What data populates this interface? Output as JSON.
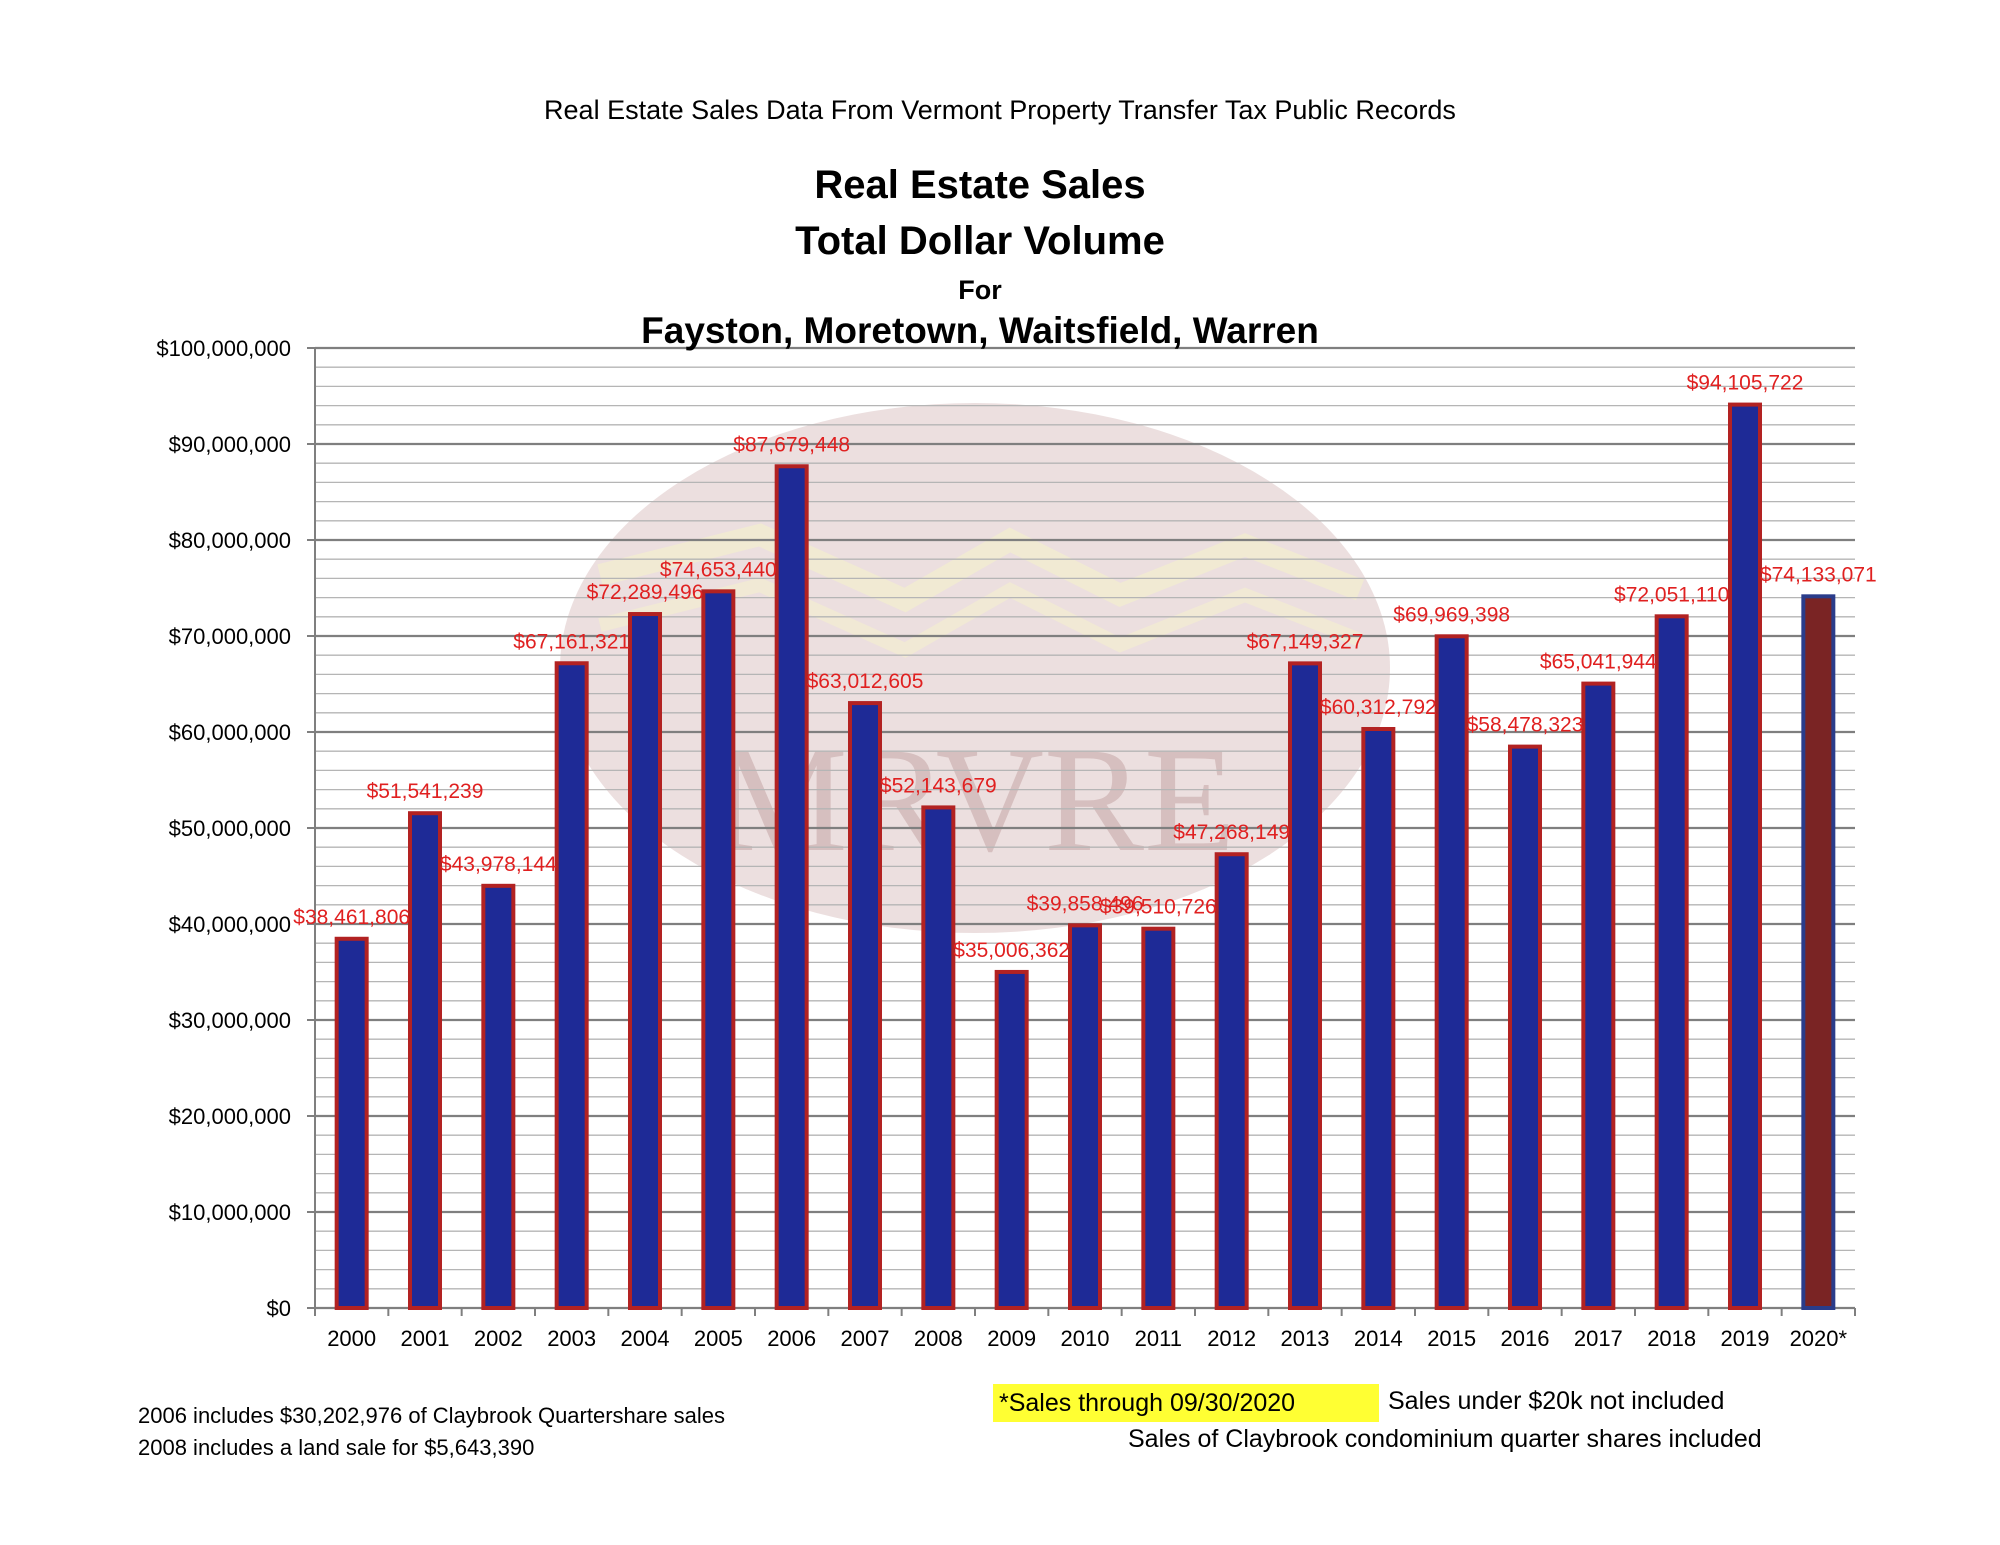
{
  "header": {
    "source": "Real Estate Sales Data From Vermont Property Transfer Tax Public Records",
    "title_line1": "Real Estate Sales",
    "title_line2": "Total Dollar Volume",
    "title_for": "For",
    "title_towns": "Fayston, Moretown, Waitsfield, Warren"
  },
  "watermark": {
    "text": "MRVRE"
  },
  "colors": {
    "bar_fill": "#1e2a96",
    "bar_edge": "#b22222",
    "bar_fill_partial_year": "#7a2424",
    "bar_edge_partial_year": "#2a3c8a",
    "data_label": "#e02020",
    "highlight": "#ffff33"
  },
  "chart_data": {
    "type": "bar",
    "categories": [
      "2000",
      "2001",
      "2002",
      "2003",
      "2004",
      "2005",
      "2006",
      "2007",
      "2008",
      "2009",
      "2010",
      "2011",
      "2012",
      "2013",
      "2014",
      "2015",
      "2016",
      "2017",
      "2018",
      "2019",
      "2020*"
    ],
    "values": [
      38461806,
      51541239,
      43978144,
      67161321,
      72289496,
      74653440,
      87679448,
      63012605,
      52143679,
      35006362,
      39858496,
      39510726,
      47268149,
      67149327,
      60312792,
      69969398,
      58478323,
      65041944,
      72051110,
      94105722,
      74133071
    ],
    "data_labels": [
      "$38,461,806",
      "$51,541,239",
      "$43,978,144",
      "$67,161,321",
      "$72,289,496",
      "$74,653,440",
      "$87,679,448",
      "$63,012,605",
      "$52,143,679",
      "$35,006,362",
      "$39,858,496",
      "$39,510,726",
      "$47,268,149",
      "$67,149,327",
      "$60,312,792",
      "$69,969,398",
      "$58,478,323",
      "$65,041,944",
      "$72,051,110",
      "$94,105,722",
      "$74,133,071"
    ],
    "ylim": [
      0,
      100000000
    ],
    "yticks": [
      0,
      10000000,
      20000000,
      30000000,
      40000000,
      50000000,
      60000000,
      70000000,
      80000000,
      90000000,
      100000000
    ],
    "ytick_labels": [
      "$0",
      "$10,000,000",
      "$20,000,000",
      "$30,000,000",
      "$40,000,000",
      "$50,000,000",
      "$60,000,000",
      "$70,000,000",
      "$80,000,000",
      "$90,000,000",
      "$100,000,000"
    ],
    "minor_grid_step": 2000000,
    "grid": true,
    "xlabel": "",
    "ylabel": ""
  },
  "notes": {
    "note_2006": "2006 includes $30,202,976 of Claybrook Quartershare sales",
    "note_2008": "2008 includes a land sale for $5,643,390",
    "sales_through": "*Sales through 09/30/2020",
    "under_20k": "Sales under $20k not included",
    "claybrook_included": "Sales of Claybrook condominium quarter shares included"
  }
}
